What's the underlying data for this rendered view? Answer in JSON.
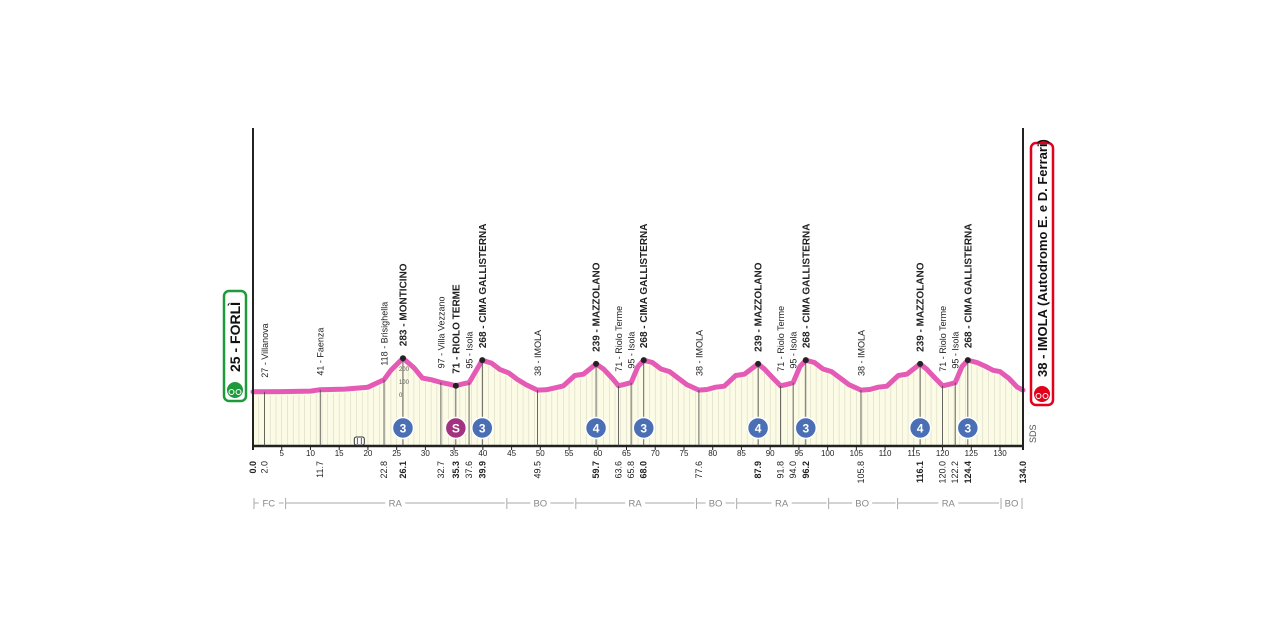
{
  "chart_data": {
    "type": "area",
    "x_unit": "km",
    "xlim": [
      0,
      134
    ],
    "y_unit": "m",
    "y_scale_ticks": [
      "200",
      "100",
      "0"
    ],
    "start": {
      "label": "25 - FORLÌ",
      "km": "0.0",
      "color": "#1e9a3c"
    },
    "finish": {
      "label": "38 - IMOLA (Autodromo E. e D. Ferrari)",
      "km": "134.0",
      "color": "#e2001a"
    },
    "line_color": "#e45ab5",
    "fill_color": "#fbfbe6",
    "x_ticks": [
      5,
      10,
      15,
      20,
      25,
      30,
      35,
      40,
      45,
      50,
      55,
      60,
      65,
      70,
      75,
      80,
      85,
      90,
      95,
      100,
      105,
      110,
      115,
      120,
      125,
      130
    ],
    "profile": [
      [
        0,
        25
      ],
      [
        5,
        26
      ],
      [
        10,
        30
      ],
      [
        11.7,
        41
      ],
      [
        16,
        45
      ],
      [
        20,
        60
      ],
      [
        22.8,
        118
      ],
      [
        24,
        190
      ],
      [
        26.1,
        283
      ],
      [
        28,
        210
      ],
      [
        29.5,
        130
      ],
      [
        31,
        118
      ],
      [
        32.7,
        97
      ],
      [
        34,
        85
      ],
      [
        35.3,
        71
      ],
      [
        36.5,
        85
      ],
      [
        37.6,
        95
      ],
      [
        39,
        200
      ],
      [
        39.9,
        268
      ],
      [
        41.5,
        245
      ],
      [
        43,
        195
      ],
      [
        44.5,
        170
      ],
      [
        46,
        120
      ],
      [
        47.5,
        80
      ],
      [
        49.5,
        38
      ],
      [
        51,
        40
      ],
      [
        52.5,
        55
      ],
      [
        54,
        70
      ],
      [
        56,
        150
      ],
      [
        57.5,
        160
      ],
      [
        59.7,
        239
      ],
      [
        61,
        200
      ],
      [
        62.5,
        130
      ],
      [
        63.6,
        71
      ],
      [
        64.5,
        80
      ],
      [
        65.8,
        95
      ],
      [
        67,
        220
      ],
      [
        68.0,
        268
      ],
      [
        69.5,
        250
      ],
      [
        71,
        200
      ],
      [
        72.5,
        180
      ],
      [
        74,
        130
      ],
      [
        75.5,
        80
      ],
      [
        77.6,
        38
      ],
      [
        79,
        42
      ],
      [
        80.5,
        60
      ],
      [
        82,
        68
      ],
      [
        84,
        150
      ],
      [
        85.5,
        160
      ],
      [
        87.9,
        239
      ],
      [
        89,
        200
      ],
      [
        90.5,
        130
      ],
      [
        91.8,
        71
      ],
      [
        92.8,
        80
      ],
      [
        94.0,
        95
      ],
      [
        95.2,
        220
      ],
      [
        96.2,
        268
      ],
      [
        97.7,
        250
      ],
      [
        99.2,
        200
      ],
      [
        100.7,
        180
      ],
      [
        102.2,
        130
      ],
      [
        103.7,
        80
      ],
      [
        105.8,
        38
      ],
      [
        107.3,
        42
      ],
      [
        108.8,
        60
      ],
      [
        110.3,
        68
      ],
      [
        112.3,
        150
      ],
      [
        113.8,
        160
      ],
      [
        116.1,
        239
      ],
      [
        117.2,
        200
      ],
      [
        118.7,
        130
      ],
      [
        120.0,
        71
      ],
      [
        121,
        80
      ],
      [
        122.2,
        95
      ],
      [
        123.4,
        220
      ],
      [
        124.4,
        268
      ],
      [
        126,
        250
      ],
      [
        127.5,
        220
      ],
      [
        128.8,
        190
      ],
      [
        130,
        180
      ],
      [
        131.5,
        130
      ],
      [
        133,
        60
      ],
      [
        134.0,
        38
      ]
    ],
    "point_labels": [
      {
        "km": 2.0,
        "text": "27 - Villanova",
        "bold": false
      },
      {
        "km": 11.7,
        "text": "41 - Faenza",
        "bold": false
      },
      {
        "km": 22.8,
        "text": "118 - Brisighella",
        "bold": false
      },
      {
        "km": 26.1,
        "text": "283 - MONTICINO",
        "bold": true
      },
      {
        "km": 32.7,
        "text": "97 - Villa Vezzano",
        "bold": false
      },
      {
        "km": 35.3,
        "text": "71 - RIOLO TERME",
        "bold": true
      },
      {
        "km": 37.6,
        "text": "95 - Isola",
        "bold": false
      },
      {
        "km": 39.9,
        "text": "268 - CIMA GALLISTERNA",
        "bold": true
      },
      {
        "km": 49.5,
        "text": "38 - IMOLA",
        "bold": false
      },
      {
        "km": 59.7,
        "text": "239 - MAZZOLANO",
        "bold": true
      },
      {
        "km": 63.6,
        "text": "71 - Riolo Terme",
        "bold": false
      },
      {
        "km": 65.8,
        "text": "95 - Isola",
        "bold": false
      },
      {
        "km": 68.0,
        "text": "268 - CIMA GALLISTERNA",
        "bold": true
      },
      {
        "km": 77.6,
        "text": "38 - IMOLA",
        "bold": false
      },
      {
        "km": 87.9,
        "text": "239 - MAZZOLANO",
        "bold": true
      },
      {
        "km": 91.8,
        "text": "71 - Riolo Terme",
        "bold": false
      },
      {
        "km": 94.0,
        "text": "95 - Isola",
        "bold": false
      },
      {
        "km": 96.2,
        "text": "268 - CIMA GALLISTERNA",
        "bold": true
      },
      {
        "km": 105.8,
        "text": "38 - IMOLA",
        "bold": false
      },
      {
        "km": 116.1,
        "text": "239 - MAZZOLANO",
        "bold": true
      },
      {
        "km": 120.0,
        "text": "71 - Riolo Terme",
        "bold": false
      },
      {
        "km": 122.2,
        "text": "95 - Isola",
        "bold": false
      },
      {
        "km": 124.4,
        "text": "268 - CIMA GALLISTERNA",
        "bold": true
      }
    ],
    "km_labels": [
      {
        "km": 2.0,
        "text": "2.0",
        "bold": false
      },
      {
        "km": 11.7,
        "text": "11.7",
        "bold": false
      },
      {
        "km": 22.8,
        "text": "22.8",
        "bold": false
      },
      {
        "km": 26.1,
        "text": "26.1",
        "bold": true
      },
      {
        "km": 32.7,
        "text": "32.7",
        "bold": false
      },
      {
        "km": 35.3,
        "text": "35.3",
        "bold": true
      },
      {
        "km": 37.6,
        "text": "37.6",
        "bold": false
      },
      {
        "km": 39.9,
        "text": "39.9",
        "bold": true
      },
      {
        "km": 49.5,
        "text": "49.5",
        "bold": false
      },
      {
        "km": 59.7,
        "text": "59.7",
        "bold": true
      },
      {
        "km": 63.6,
        "text": "63.6",
        "bold": false
      },
      {
        "km": 65.8,
        "text": "65.8",
        "bold": false
      },
      {
        "km": 68.0,
        "text": "68.0",
        "bold": true
      },
      {
        "km": 77.6,
        "text": "77.6",
        "bold": false
      },
      {
        "km": 87.9,
        "text": "87.9",
        "bold": true
      },
      {
        "km": 91.8,
        "text": "91.8",
        "bold": false
      },
      {
        "km": 94.0,
        "text": "94.0",
        "bold": false
      },
      {
        "km": 96.2,
        "text": "96.2",
        "bold": true
      },
      {
        "km": 105.8,
        "text": "105.8",
        "bold": false
      },
      {
        "km": 116.1,
        "text": "116.1",
        "bold": true
      },
      {
        "km": 120.0,
        "text": "120.0",
        "bold": false
      },
      {
        "km": 122.2,
        "text": "122.2",
        "bold": false
      },
      {
        "km": 124.4,
        "text": "124.4",
        "bold": true
      }
    ],
    "climb_markers": [
      {
        "km": 26.1,
        "category": "3",
        "color": "#4a6fb5"
      },
      {
        "km": 35.3,
        "category": "S",
        "color": "#a3337f"
      },
      {
        "km": 39.9,
        "category": "3",
        "color": "#4a6fb5"
      },
      {
        "km": 59.7,
        "category": "4",
        "color": "#4a6fb5"
      },
      {
        "km": 68.0,
        "category": "3",
        "color": "#4a6fb5"
      },
      {
        "km": 87.9,
        "category": "4",
        "color": "#4a6fb5"
      },
      {
        "km": 96.2,
        "category": "3",
        "color": "#4a6fb5"
      },
      {
        "km": 116.1,
        "category": "4",
        "color": "#4a6fb5"
      },
      {
        "km": 124.4,
        "category": "3",
        "color": "#4a6fb5"
      }
    ],
    "provinces": [
      {
        "from": 0,
        "to": 5.5,
        "label": "FC"
      },
      {
        "from": 5.5,
        "to": 44,
        "label": "RA"
      },
      {
        "from": 44,
        "to": 56,
        "label": "BO"
      },
      {
        "from": 56,
        "to": 77,
        "label": "RA"
      },
      {
        "from": 77,
        "to": 84,
        "label": "BO"
      },
      {
        "from": 84,
        "to": 100,
        "label": "RA"
      },
      {
        "from": 100,
        "to": 112,
        "label": "BO"
      },
      {
        "from": 112,
        "to": 130,
        "label": "RA"
      },
      {
        "from": 130,
        "to": 134,
        "label": "BO"
      }
    ],
    "feed_zone_km": 18.5,
    "brand_mark": "SDS"
  }
}
